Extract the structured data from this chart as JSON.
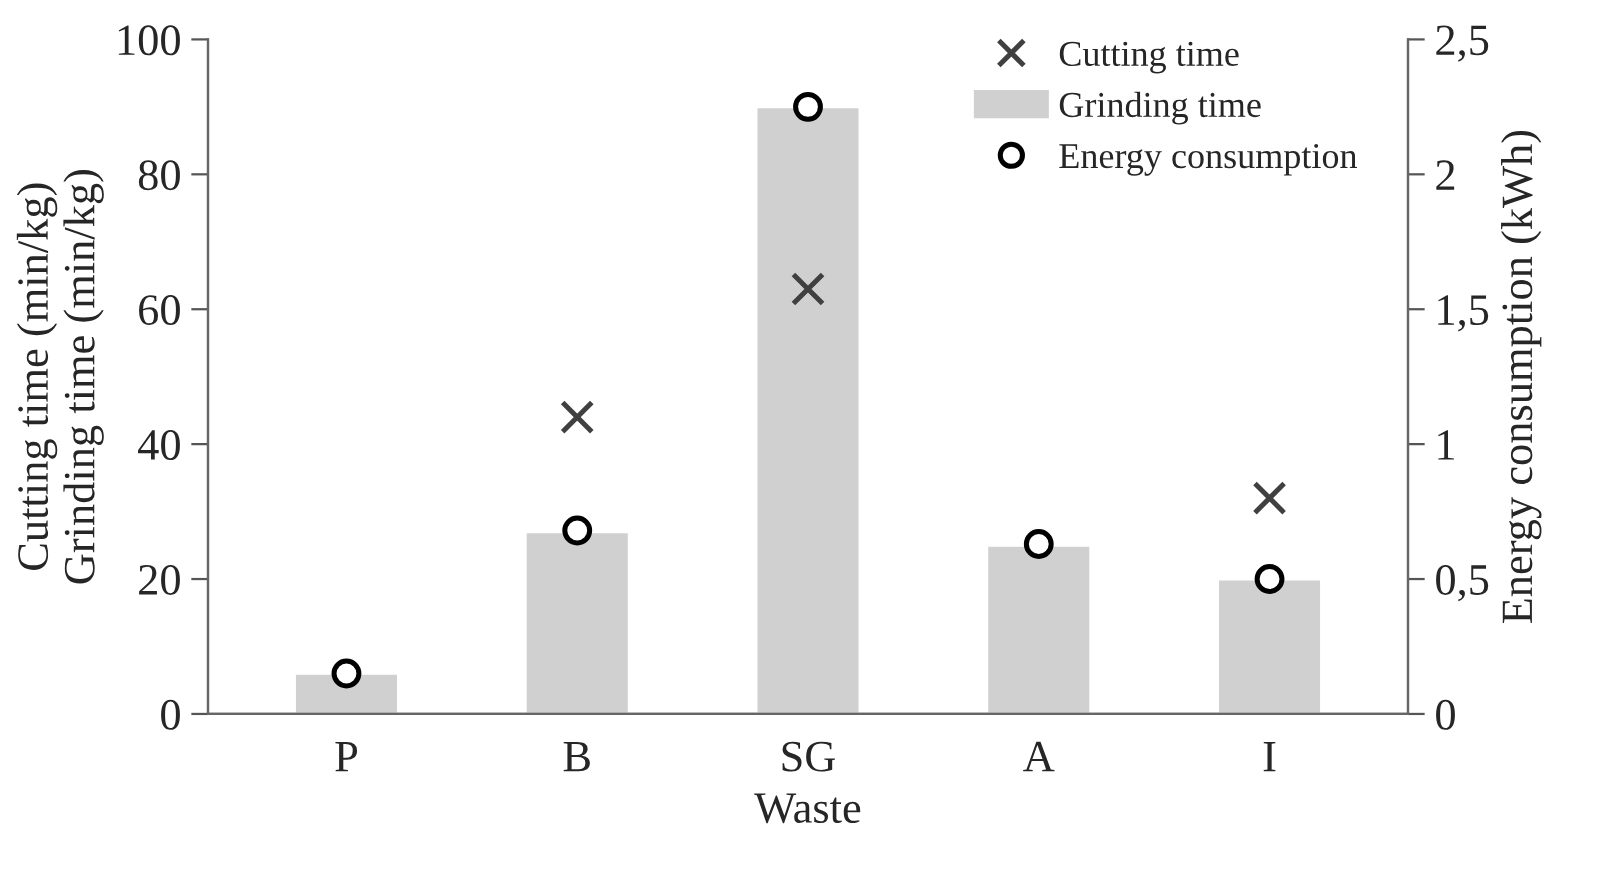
{
  "chart_data": {
    "type": "bar",
    "xlabel": "Waste",
    "ylabel": "Cutting time (min/kg)\nGrinding time (min/kg)",
    "y2label": "Energy consumption (kWh)",
    "categories": [
      "P",
      "B",
      "SG",
      "A",
      "I"
    ],
    "series": [
      {
        "name": "Cutting time",
        "type": "scatter",
        "marker": "cross",
        "color": "#404040",
        "values": [
          null,
          44,
          63,
          null,
          32
        ]
      },
      {
        "name": "Grinding time",
        "color": "#d0d0d0",
        "values": [
          6,
          27,
          90,
          25,
          20
        ]
      },
      {
        "name": "Energy consumption",
        "type": "scatter",
        "marker": "circle",
        "color": "#000000",
        "axis": "y2",
        "values": [
          0.15,
          0.68,
          2.25,
          0.63,
          0.5
        ]
      }
    ],
    "ylim": [
      0,
      100
    ],
    "yticks": [
      0,
      20,
      40,
      60,
      80,
      100
    ],
    "y2lim": [
      0,
      2.5
    ],
    "y2ticks": [
      0,
      {
        "value": 0.5,
        "label": "0,5"
      },
      1,
      {
        "value": 1.5,
        "label": "1,5"
      },
      2,
      {
        "value": 2.5,
        "label": "2,5"
      }
    ],
    "legend": "top right",
    "grid": false
  }
}
